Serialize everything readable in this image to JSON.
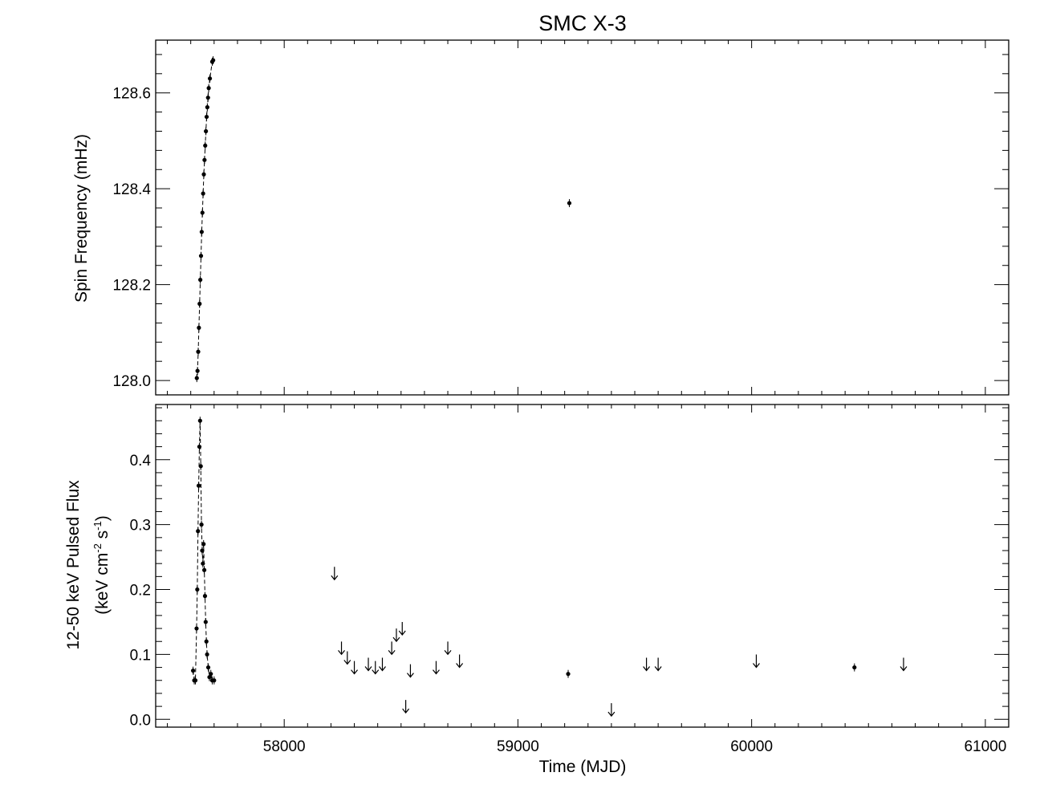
{
  "chart_data": [
    {
      "type": "scatter",
      "panel": "top",
      "title": "SMC X-3",
      "xlabel": "",
      "ylabel": "Spin Frequency (mHz)",
      "xlim": [
        57450,
        61100
      ],
      "ylim": [
        127.97,
        128.71
      ],
      "xticks": [
        58000,
        59000,
        60000,
        61000
      ],
      "yticks": [
        128.0,
        128.2,
        128.4,
        128.6
      ],
      "ytick_labels": [
        "128.0",
        "128.2",
        "128.4",
        "128.6"
      ],
      "grid": false,
      "series": [
        {
          "x": [
            57626,
            57629,
            57632,
            57635,
            57638,
            57641,
            57644,
            57647,
            57650,
            57653,
            57656,
            57659,
            57662,
            57665,
            57668,
            57671,
            57674,
            57677,
            57682,
            57692,
            57696,
            59220
          ],
          "y": [
            128.005,
            128.02,
            128.06,
            128.11,
            128.16,
            128.21,
            128.26,
            128.31,
            128.35,
            128.39,
            128.43,
            128.46,
            128.49,
            128.52,
            128.55,
            128.57,
            128.59,
            128.61,
            128.63,
            128.665,
            128.668,
            128.37
          ]
        }
      ]
    },
    {
      "type": "scatter",
      "panel": "bottom",
      "title": "",
      "xlabel": "Time (MJD)",
      "ylabel": "12-50 keV Pulsed Flux",
      "ylabel2": "(keV cm",
      "ylabel2_sup1": "-2",
      "ylabel2_mid": " s",
      "ylabel2_sup2": "-1",
      "ylabel2_end": ")",
      "xlim": [
        57450,
        61100
      ],
      "ylim": [
        -0.012,
        0.485
      ],
      "xticks": [
        58000,
        59000,
        60000,
        61000
      ],
      "xtick_labels": [
        "58000",
        "59000",
        "60000",
        "61000"
      ],
      "yticks": [
        0.0,
        0.1,
        0.2,
        0.3,
        0.4
      ],
      "ytick_labels": [
        "0.0",
        "0.1",
        "0.2",
        "0.3",
        "0.4"
      ],
      "grid": false,
      "series": [
        {
          "name": "detections",
          "x": [
            57610,
            57615,
            57620,
            57625,
            57628,
            57631,
            57634,
            57637,
            57640,
            57643,
            57646,
            57649,
            57652,
            57655,
            57658,
            57661,
            57664,
            57667,
            57670,
            57675,
            57680,
            57686,
            57692,
            57700,
            59215,
            60440
          ],
          "y": [
            0.075,
            0.06,
            0.06,
            0.14,
            0.2,
            0.29,
            0.36,
            0.42,
            0.46,
            0.39,
            0.3,
            0.26,
            0.24,
            0.27,
            0.23,
            0.19,
            0.15,
            0.12,
            0.1,
            0.08,
            0.065,
            0.07,
            0.06,
            0.06,
            0.07,
            0.08
          ]
        },
        {
          "name": "upper limits",
          "x": [
            58215,
            58245,
            58270,
            58300,
            58360,
            58390,
            58420,
            58460,
            58480,
            58505,
            58520,
            58540,
            58650,
            58700,
            58750,
            59400,
            59550,
            59600,
            60020,
            60650
          ],
          "y": [
            0.225,
            0.11,
            0.095,
            0.08,
            0.085,
            0.08,
            0.085,
            0.11,
            0.13,
            0.14,
            0.02,
            0.075,
            0.08,
            0.11,
            0.09,
            0.015,
            0.085,
            0.085,
            0.09,
            0.085
          ]
        }
      ]
    }
  ]
}
